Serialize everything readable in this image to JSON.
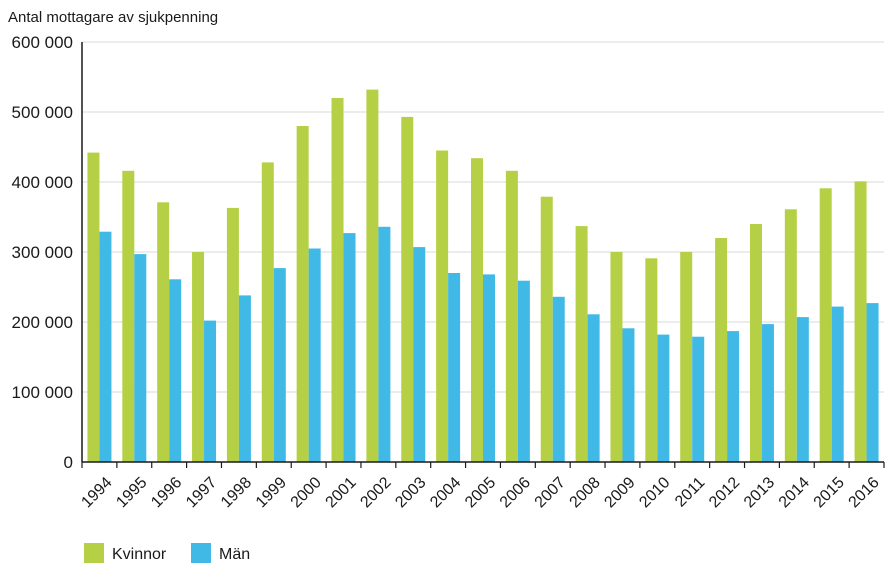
{
  "chart_data": {
    "type": "bar",
    "ylabel": "Antal mottagare av sjukpenning",
    "categories": [
      "1994",
      "1995",
      "1996",
      "1997",
      "1998",
      "1999",
      "2000",
      "2001",
      "2002",
      "2003",
      "2004",
      "2005",
      "2006",
      "2007",
      "2008",
      "2009",
      "2010",
      "2011",
      "2012",
      "2013",
      "2014",
      "2015",
      "2016"
    ],
    "series": [
      {
        "name": "Kvinnor",
        "color": "#b5d045",
        "values": [
          442000,
          416000,
          371000,
          300000,
          363000,
          428000,
          480000,
          520000,
          532000,
          493000,
          445000,
          434000,
          416000,
          379000,
          337000,
          300000,
          291000,
          300000,
          320000,
          340000,
          361000,
          391000,
          401000
        ]
      },
      {
        "name": "Män",
        "color": "#40b9e6",
        "values": [
          329000,
          297000,
          261000,
          202000,
          238000,
          277000,
          305000,
          327000,
          336000,
          307000,
          270000,
          268000,
          259000,
          236000,
          211000,
          191000,
          182000,
          179000,
          187000,
          197000,
          207000,
          222000,
          227000
        ]
      }
    ],
    "yticks": [
      "0",
      "100 000",
      "200 000",
      "300 000",
      "400 000",
      "500 000",
      "600 000"
    ],
    "ylim": [
      0,
      600000
    ],
    "grid": true,
    "legend_position": "bottom-left"
  }
}
